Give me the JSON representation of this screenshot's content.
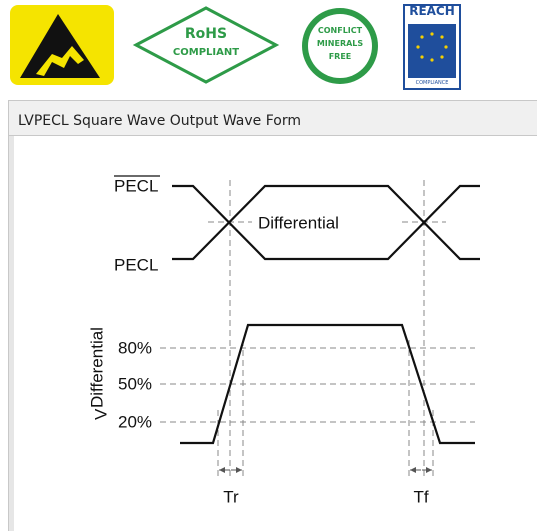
{
  "badges": {
    "rohs": [
      "RoHS",
      "COMPLIANT"
    ],
    "conflict": [
      "CONFLICT",
      "MINERALS",
      "FREE"
    ],
    "reach": {
      "title": "REACH",
      "footer": "COMPLIANCE"
    }
  },
  "panel": {
    "title": "LVPECL Square Wave Output Wave Form"
  },
  "diagram": {
    "pecl_inverted": "PECL",
    "differential": "Differential",
    "pecl": "PECL",
    "y_label": {
      "main": "V",
      "sub": "Differential"
    },
    "levels": [
      "80%",
      "50%",
      "20%"
    ],
    "rise": "Tr",
    "fall": "Tf"
  }
}
